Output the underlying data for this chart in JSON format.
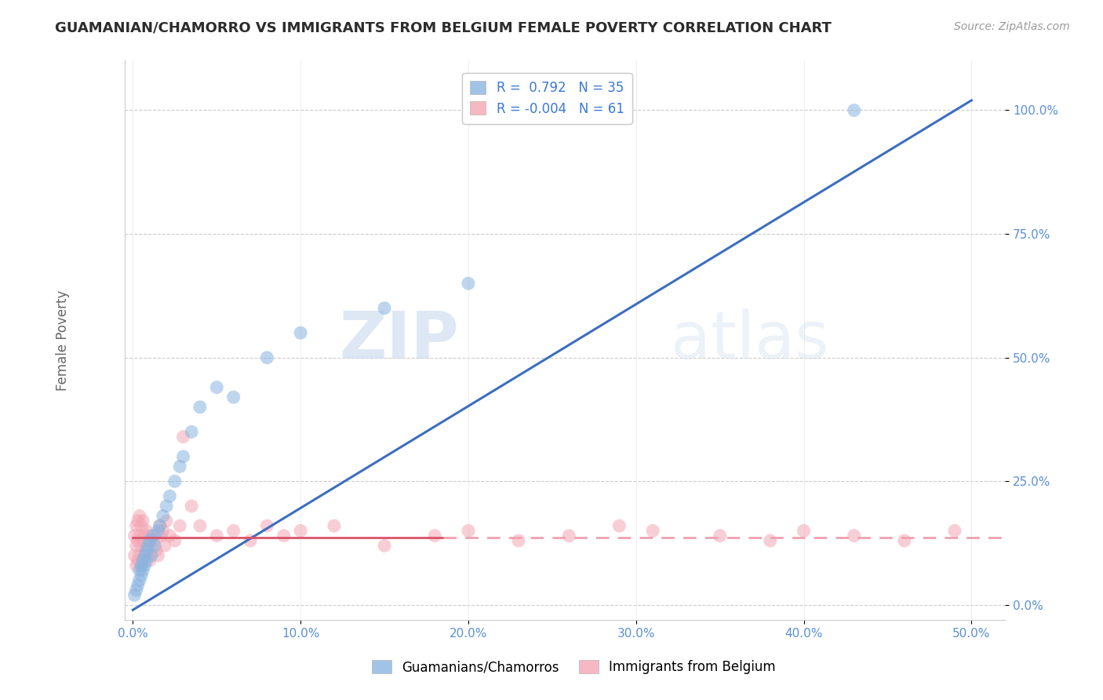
{
  "title": "GUAMANIAN/CHAMORRO VS IMMIGRANTS FROM BELGIUM FEMALE POVERTY CORRELATION CHART",
  "source": "Source: ZipAtlas.com",
  "ylabel": "Female Poverty",
  "xlim": [
    -0.005,
    0.52
  ],
  "ylim": [
    -0.03,
    1.1
  ],
  "xticks": [
    0.0,
    0.1,
    0.2,
    0.3,
    0.4,
    0.5
  ],
  "xticklabels": [
    "0.0%",
    "10.0%",
    "20.0%",
    "30.0%",
    "40.0%",
    "50.0%"
  ],
  "yticks": [
    0.0,
    0.25,
    0.5,
    0.75,
    1.0
  ],
  "yticklabels": [
    "0.0%",
    "25.0%",
    "50.0%",
    "75.0%",
    "100.0%"
  ],
  "blue_color": "#8ab4e0",
  "pink_color": "#f4a7b5",
  "blue_line_color": "#3c6ebf",
  "pink_line_color": "#d9536a",
  "pink_line_dashed_color": "#f0a0b0",
  "legend_R1": "R =  0.792",
  "legend_N1": "N = 35",
  "legend_R2": "R = -0.004",
  "legend_N2": "N = 61",
  "watermark_zip": "ZIP",
  "watermark_atlas": "atlas",
  "blue_scatter_x": [
    0.001,
    0.002,
    0.003,
    0.004,
    0.004,
    0.005,
    0.005,
    0.006,
    0.006,
    0.007,
    0.007,
    0.008,
    0.008,
    0.009,
    0.01,
    0.011,
    0.012,
    0.013,
    0.015,
    0.016,
    0.018,
    0.02,
    0.022,
    0.025,
    0.028,
    0.03,
    0.035,
    0.04,
    0.05,
    0.06,
    0.08,
    0.1,
    0.15,
    0.2,
    0.43
  ],
  "blue_scatter_y": [
    0.02,
    0.03,
    0.04,
    0.05,
    0.07,
    0.06,
    0.08,
    0.07,
    0.09,
    0.1,
    0.08,
    0.11,
    0.09,
    0.12,
    0.13,
    0.1,
    0.14,
    0.12,
    0.15,
    0.16,
    0.18,
    0.2,
    0.22,
    0.25,
    0.28,
    0.3,
    0.35,
    0.4,
    0.44,
    0.42,
    0.5,
    0.55,
    0.6,
    0.65,
    1.0
  ],
  "pink_scatter_x": [
    0.001,
    0.001,
    0.002,
    0.002,
    0.002,
    0.003,
    0.003,
    0.003,
    0.004,
    0.004,
    0.004,
    0.005,
    0.005,
    0.005,
    0.006,
    0.006,
    0.006,
    0.007,
    0.007,
    0.008,
    0.008,
    0.009,
    0.009,
    0.01,
    0.01,
    0.011,
    0.012,
    0.013,
    0.014,
    0.015,
    0.016,
    0.017,
    0.018,
    0.019,
    0.02,
    0.022,
    0.025,
    0.028,
    0.03,
    0.035,
    0.04,
    0.05,
    0.06,
    0.07,
    0.08,
    0.09,
    0.1,
    0.12,
    0.15,
    0.18,
    0.2,
    0.23,
    0.26,
    0.29,
    0.31,
    0.35,
    0.38,
    0.4,
    0.43,
    0.46,
    0.49
  ],
  "pink_scatter_y": [
    0.1,
    0.14,
    0.08,
    0.12,
    0.16,
    0.09,
    0.13,
    0.17,
    0.1,
    0.14,
    0.18,
    0.08,
    0.12,
    0.16,
    0.09,
    0.13,
    0.17,
    0.1,
    0.14,
    0.11,
    0.15,
    0.1,
    0.14,
    0.09,
    0.13,
    0.12,
    0.13,
    0.14,
    0.11,
    0.1,
    0.16,
    0.14,
    0.15,
    0.12,
    0.17,
    0.14,
    0.13,
    0.16,
    0.34,
    0.2,
    0.16,
    0.14,
    0.15,
    0.13,
    0.16,
    0.14,
    0.15,
    0.16,
    0.12,
    0.14,
    0.15,
    0.13,
    0.14,
    0.16,
    0.15,
    0.14,
    0.13,
    0.15,
    0.14,
    0.13,
    0.15
  ],
  "blue_line_x0": 0.0,
  "blue_line_x1": 0.5,
  "blue_line_y0": -0.01,
  "blue_line_y1": 1.02,
  "pink_line_solid_x0": 0.0,
  "pink_line_solid_x1": 0.185,
  "pink_line_dashed_x0": 0.185,
  "pink_line_dashed_x1": 0.52,
  "pink_line_y": 0.137
}
